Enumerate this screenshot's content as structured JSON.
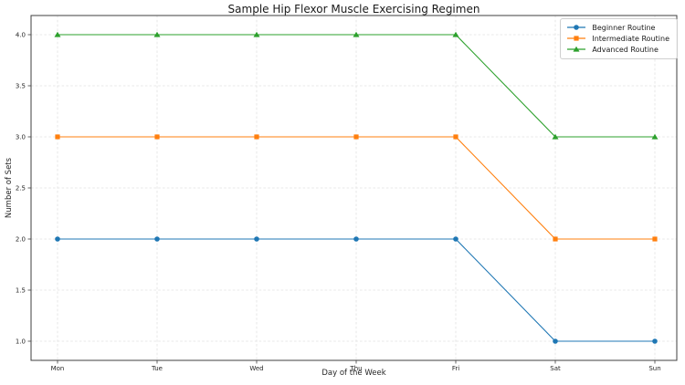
{
  "chart_data": {
    "type": "line",
    "title": "Sample Hip Flexor Muscle Exercising Regimen",
    "xlabel": "Day of the Week",
    "ylabel": "Number of Sets",
    "x": [
      "Mon",
      "Tue",
      "Wed",
      "Thu",
      "Fri",
      "Sat",
      "Sun"
    ],
    "series": [
      {
        "name": "Beginner Routine",
        "color": "#1f77b4",
        "marker": "circle",
        "values": [
          2,
          2,
          2,
          2,
          2,
          1,
          1
        ]
      },
      {
        "name": "Intermediate Routine",
        "color": "#ff7f0e",
        "marker": "square",
        "values": [
          3,
          3,
          3,
          3,
          3,
          2,
          2
        ]
      },
      {
        "name": "Advanced Routine",
        "color": "#2ca02c",
        "marker": "triangle",
        "values": [
          4,
          4,
          4,
          4,
          4,
          3,
          3
        ]
      }
    ],
    "ylim": [
      1.0,
      4.0
    ],
    "yticks": [
      1.0,
      1.5,
      2.0,
      2.5,
      3.0,
      3.5,
      4.0
    ],
    "ytick_labels": [
      "1.0",
      "1.5",
      "2.0",
      "2.5",
      "3.0",
      "3.5",
      "4.0"
    ],
    "grid": true,
    "grid_style": "dashed",
    "legend_position": "upper right",
    "colors": {
      "spine": "#3f3f3f",
      "grid": "#e2e2e2",
      "tick_label": "#262626",
      "background": "#ffffff"
    }
  }
}
